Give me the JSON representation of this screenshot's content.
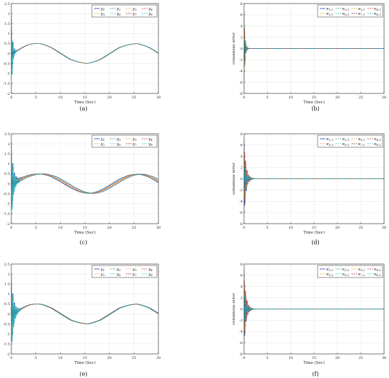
{
  "colors": [
    "#1f3fbf",
    "#2a9d5c",
    "#f0a030",
    "#d03030",
    "#e0a040",
    "#20c0c8",
    "#8a2020",
    "#20b0d0"
  ],
  "dashes": [
    "",
    "2,1.2",
    "2,1.2",
    "2,1.2",
    "2,1.2",
    "2,1.2",
    "2,1.2",
    "2,1.2"
  ],
  "chart_data": [
    {
      "type": "line",
      "caption": "(a)",
      "xlabel": "Time (Sec)",
      "ylabel": "",
      "xlim": [
        0,
        30
      ],
      "ylim": [
        -2,
        2.5
      ],
      "xticks": [
        0,
        5,
        10,
        15,
        20,
        25,
        30
      ],
      "yticks": [
        -2,
        -1.5,
        -1,
        -0.5,
        0,
        0.5,
        1,
        1.5,
        2,
        2.5
      ],
      "ytick_labels": [
        "-2",
        "-1.5",
        "-1",
        "-0.5",
        "0",
        "0.5",
        "1",
        "1.5",
        "2",
        "2.5"
      ],
      "grid": true,
      "legend_position": "top-right",
      "legend": [
        "y1",
        "y2",
        "y3",
        "y4",
        "y5",
        "y6",
        "y7",
        "y8"
      ],
      "legend_sub": [
        "1",
        "2",
        "3",
        "4",
        "5",
        "6",
        "7",
        "8"
      ],
      "signal": {
        "kind": "sine",
        "amplitude": 0.5,
        "period": 20,
        "phase_spread": 0.25
      },
      "transient": {
        "initial": [
          2.0,
          1.0,
          0.6,
          -0.8,
          1.3,
          -2.0,
          0.4,
          0.8
        ],
        "end_time": 1.2
      },
      "x": [
        0,
        1,
        2,
        3,
        4,
        5,
        5.5,
        6,
        8,
        10,
        12,
        15.5,
        18,
        20,
        22,
        25.5,
        28,
        30
      ],
      "series": [
        {
          "name": "y1 … y8",
          "values": [
            0.0,
            0.1,
            0.25,
            0.4,
            0.48,
            0.5,
            0.5,
            0.49,
            0.31,
            0.0,
            -0.31,
            -0.5,
            -0.31,
            0.0,
            0.31,
            0.5,
            0.31,
            0.0
          ]
        }
      ]
    },
    {
      "type": "line",
      "caption": "(b)",
      "xlabel": "Time (Sec)",
      "ylabel": "consensus error",
      "xlim": [
        0,
        30
      ],
      "ylim": [
        -8,
        8
      ],
      "xticks": [
        0,
        5,
        10,
        15,
        20,
        25,
        30
      ],
      "yticks": [
        -8,
        -6,
        -4,
        -2,
        0,
        2,
        4,
        6,
        8
      ],
      "ytick_labels": [
        "-8",
        "-6",
        "-4",
        "-2",
        "0",
        "2",
        "4",
        "6",
        "8"
      ],
      "grid": true,
      "legend_position": "top-right",
      "legend": [
        "e1,1",
        "e3,1",
        "e5,1",
        "e4,1",
        "e5,1",
        "e6,1",
        "e7,1",
        "e8,1"
      ],
      "legend_sub": [
        "1,1",
        "3,1",
        "5,1",
        "4,1",
        "5,1",
        "6,1",
        "7,1",
        "8,1"
      ],
      "signal": {
        "kind": "zero"
      },
      "transient": {
        "initial": [
          6.5,
          -7.0,
          4.5,
          -5.5,
          5.5,
          -3.5,
          2.5,
          -2.0
        ],
        "end_time": 1.0
      },
      "x": [
        0,
        1,
        5,
        10,
        15,
        20,
        25,
        30
      ],
      "series": [
        {
          "name": "e",
          "values": [
            0,
            0,
            0,
            0,
            0,
            0,
            0,
            0
          ]
        }
      ]
    },
    {
      "type": "line",
      "caption": "(c)",
      "xlabel": "Time (Sec)",
      "ylabel": "",
      "xlim": [
        0,
        30
      ],
      "ylim": [
        -2,
        2.5
      ],
      "xticks": [
        0,
        5,
        10,
        15,
        20,
        25,
        30
      ],
      "yticks": [
        -2,
        -1.5,
        -1,
        -0.5,
        0,
        0.5,
        1,
        1.5,
        2,
        2.5
      ],
      "ytick_labels": [
        "-2",
        "-1.5",
        "-1",
        "-0.5",
        "0",
        "0.5",
        "1",
        "1.5",
        "2",
        "2.5"
      ],
      "grid": true,
      "legend_position": "top-right",
      "legend": [
        "y1",
        "y3",
        "y5",
        "y4",
        "y2",
        "y6",
        "y7",
        "y8"
      ],
      "legend_sub": [
        "1",
        "3",
        "5",
        "4",
        "2",
        "6",
        "7",
        "8"
      ],
      "signal": {
        "kind": "sine",
        "amplitude": 0.5,
        "period": 20,
        "phase_spread": 1.2
      },
      "transient": {
        "initial": [
          2.0,
          1.2,
          0.8,
          -0.8,
          1.5,
          -2.0,
          0.5,
          -1.0
        ],
        "end_time": 2.0
      },
      "x": [
        0,
        2,
        4,
        6,
        8,
        10,
        12,
        14,
        16,
        18,
        20,
        22,
        24,
        26,
        28,
        30
      ],
      "series": [
        {
          "name": "y1 … y8",
          "values": [
            0.1,
            0.3,
            0.45,
            0.5,
            0.43,
            0.2,
            -0.1,
            -0.35,
            -0.5,
            -0.4,
            -0.15,
            0.15,
            0.38,
            0.48,
            0.38,
            0.1
          ]
        }
      ]
    },
    {
      "type": "line",
      "caption": "(d)",
      "xlabel": "Time (Sec)",
      "ylabel": "consensus error",
      "xlim": [
        0,
        30
      ],
      "ylim": [
        -8,
        8
      ],
      "xticks": [
        0,
        5,
        10,
        15,
        20,
        25,
        30
      ],
      "yticks": [
        -8,
        -6,
        -4,
        -2,
        0,
        2,
        4,
        6,
        8
      ],
      "ytick_labels": [
        "-8",
        "-6",
        "-4",
        "-2",
        "0",
        "2",
        "4",
        "6",
        "8"
      ],
      "grid": true,
      "legend_position": "top-right",
      "legend": [
        "e1,1",
        "e3,1",
        "e5,1",
        "e4,1",
        "e5,1",
        "e6,1",
        "e7,1",
        "e8,1"
      ],
      "legend_sub": [
        "1,1",
        "3,1",
        "5,1",
        "4,1",
        "5,1",
        "6,1",
        "7,1",
        "8,1"
      ],
      "signal": {
        "kind": "zero"
      },
      "transient": {
        "initial": [
          7.0,
          -6.5,
          5.0,
          -6.0,
          4.5,
          -3.0,
          3.0,
          -2.5
        ],
        "end_time": 2.0
      },
      "x": [
        0,
        2,
        5,
        10,
        15,
        20,
        25,
        30
      ],
      "series": [
        {
          "name": "e",
          "values": [
            0,
            0,
            0,
            0,
            0,
            0,
            0,
            0
          ]
        }
      ]
    },
    {
      "type": "line",
      "caption": "(e)",
      "xlabel": "Time (Sec)",
      "ylabel": "",
      "xlim": [
        0,
        30
      ],
      "ylim": [
        -2,
        2.5
      ],
      "xticks": [
        0,
        5,
        10,
        15,
        20,
        25,
        30
      ],
      "yticks": [
        -2,
        -1.5,
        -1,
        -0.5,
        0,
        0.5,
        1,
        1.5,
        2,
        2.5
      ],
      "ytick_labels": [
        "-2",
        "-1.5",
        "-1",
        "-0.5",
        "0",
        "0.5",
        "1",
        "1.5",
        "2",
        "2.5"
      ],
      "grid": true,
      "legend_position": "top-right",
      "legend": [
        "y1",
        "y3",
        "y5",
        "y4",
        "y2",
        "y6",
        "y7",
        "y8"
      ],
      "legend_sub": [
        "1",
        "3",
        "5",
        "4",
        "2",
        "6",
        "7",
        "8"
      ],
      "signal": {
        "kind": "sine",
        "amplitude": 0.5,
        "period": 20,
        "phase_spread": 0.3
      },
      "transient": {
        "initial": [
          2.0,
          1.0,
          0.7,
          -1.2,
          1.6,
          -2.0,
          0.5,
          0.9
        ],
        "end_time": 2.2
      },
      "x": [
        0,
        1,
        2,
        3,
        4,
        5,
        5.5,
        6,
        8,
        10,
        12,
        15.5,
        18,
        20,
        22,
        25.5,
        28,
        30
      ],
      "series": [
        {
          "name": "y1 … y8",
          "values": [
            0.0,
            0.1,
            0.25,
            0.4,
            0.48,
            0.5,
            0.5,
            0.49,
            0.31,
            0.0,
            -0.31,
            -0.5,
            -0.31,
            0.0,
            0.31,
            0.5,
            0.31,
            0.0
          ]
        }
      ]
    },
    {
      "type": "line",
      "caption": "(f)",
      "xlabel": "Time (Sec)",
      "ylabel": "consensus error",
      "xlim": [
        0,
        30
      ],
      "ylim": [
        -8,
        8
      ],
      "xticks": [
        0,
        5,
        10,
        15,
        20,
        25,
        30
      ],
      "yticks": [
        -8,
        -6,
        -4,
        -2,
        0,
        2,
        4,
        6,
        8
      ],
      "ytick_labels": [
        "-8",
        "-6",
        "-4",
        "-2",
        "0",
        "2",
        "4",
        "6",
        "8"
      ],
      "grid": true,
      "legend_position": "top-right",
      "legend": [
        "e1,1",
        "e3,1",
        "e5,1",
        "e4,1",
        "e5,1",
        "e6,1",
        "e7,1",
        "e8,1"
      ],
      "legend_sub": [
        "1,1",
        "3,1",
        "5,1",
        "4,1",
        "5,1",
        "6,1",
        "7,1",
        "8,1"
      ],
      "signal": {
        "kind": "zero"
      },
      "transient": {
        "initial": [
          7.0,
          -6.0,
          5.5,
          -6.5,
          4.5,
          -3.5,
          3.0,
          -2.5
        ],
        "end_time": 2.0
      },
      "x": [
        0,
        2,
        5,
        10,
        15,
        20,
        25,
        30
      ],
      "series": [
        {
          "name": "e",
          "values": [
            0,
            0,
            0,
            0,
            0,
            0,
            0,
            0
          ]
        }
      ]
    }
  ]
}
